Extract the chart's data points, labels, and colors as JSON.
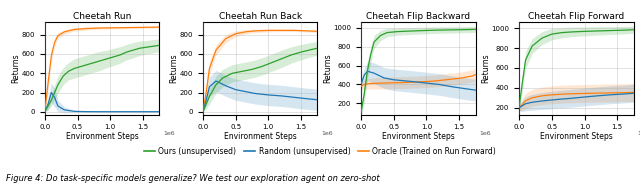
{
  "titles": [
    "Cheetah Run",
    "Cheetah Run Back",
    "Cheetah Flip Backward",
    "Cheetah Flip Forward"
  ],
  "xlabel": "Environment Steps",
  "ylabel": "Returns",
  "xticks": [
    0.0,
    0.5,
    1.0,
    1.5
  ],
  "colors": {
    "ours": "#2ca02c",
    "random": "#1f77b4",
    "oracle": "#ff7f0e"
  },
  "legend_labels": [
    "Ours (unsupervised)",
    "Random (unsupervised)",
    "Oracle (Trained on Run Forward)"
  ],
  "caption": "Figure 4: Do task-specific models generalize? We test our exploration agent on zero-shot",
  "plots": {
    "cheetah_run": {
      "ylim": [
        -30,
        930
      ],
      "yticks": [
        0,
        200,
        400,
        600,
        800
      ],
      "ours_x": [
        0,
        0.05,
        0.1,
        0.15,
        0.2,
        0.28,
        0.36,
        0.45,
        0.55,
        0.65,
        0.75,
        0.85,
        0.95,
        1.05,
        1.15,
        1.25,
        1.35,
        1.45,
        1.55,
        1.65,
        1.75
      ],
      "ours_mean": [
        0,
        60,
        120,
        200,
        280,
        370,
        420,
        450,
        470,
        490,
        510,
        530,
        550,
        570,
        590,
        620,
        640,
        660,
        670,
        680,
        690
      ],
      "ours_std": [
        0,
        40,
        60,
        80,
        90,
        90,
        90,
        100,
        100,
        100,
        100,
        100,
        90,
        90,
        85,
        80,
        80,
        75,
        70,
        70,
        65
      ],
      "random_x": [
        0,
        0.05,
        0.1,
        0.15,
        0.2,
        0.3,
        0.45,
        0.6,
        0.8,
        1.0,
        1.2,
        1.4,
        1.6,
        1.75
      ],
      "random_mean": [
        0,
        80,
        200,
        150,
        60,
        20,
        5,
        2,
        1,
        1,
        1,
        1,
        1,
        1
      ],
      "random_std": [
        0,
        60,
        100,
        100,
        60,
        30,
        10,
        5,
        3,
        3,
        3,
        3,
        3,
        3
      ],
      "oracle_x": [
        0,
        0.05,
        0.1,
        0.15,
        0.2,
        0.3,
        0.45,
        0.65,
        0.85,
        1.05,
        1.25,
        1.45,
        1.65,
        1.75
      ],
      "oracle_mean": [
        0,
        300,
        580,
        720,
        790,
        830,
        855,
        865,
        870,
        872,
        874,
        876,
        878,
        880
      ],
      "oracle_std": [
        0,
        80,
        60,
        40,
        30,
        22,
        18,
        15,
        13,
        12,
        11,
        10,
        10,
        10
      ]
    },
    "cheetah_run_back": {
      "ylim": [
        -30,
        930
      ],
      "yticks": [
        0,
        200,
        400,
        600,
        800
      ],
      "ours_x": [
        0,
        0.05,
        0.1,
        0.2,
        0.3,
        0.45,
        0.6,
        0.75,
        0.9,
        1.05,
        1.2,
        1.35,
        1.5,
        1.65,
        1.75
      ],
      "ours_mean": [
        0,
        80,
        160,
        280,
        350,
        400,
        420,
        440,
        470,
        510,
        550,
        590,
        620,
        645,
        660
      ],
      "ours_std": [
        0,
        50,
        80,
        90,
        90,
        90,
        90,
        90,
        90,
        90,
        90,
        85,
        80,
        75,
        70
      ],
      "random_x": [
        0,
        0.05,
        0.1,
        0.2,
        0.35,
        0.5,
        0.65,
        0.8,
        1.0,
        1.2,
        1.4,
        1.6,
        1.75
      ],
      "random_mean": [
        0,
        120,
        260,
        320,
        270,
        230,
        210,
        190,
        175,
        165,
        150,
        135,
        125
      ],
      "random_std": [
        0,
        60,
        100,
        110,
        110,
        110,
        110,
        110,
        110,
        110,
        110,
        110,
        110
      ],
      "oracle_x": [
        0,
        0.05,
        0.1,
        0.2,
        0.35,
        0.5,
        0.65,
        0.8,
        1.0,
        1.2,
        1.4,
        1.6,
        1.75
      ],
      "oracle_mean": [
        0,
        200,
        450,
        640,
        760,
        810,
        830,
        840,
        845,
        845,
        845,
        840,
        835
      ],
      "oracle_std": [
        0,
        80,
        70,
        55,
        40,
        30,
        22,
        18,
        15,
        13,
        12,
        12,
        12
      ]
    },
    "cheetah_flip_backward": {
      "ylim": [
        80,
        1060
      ],
      "yticks": [
        200,
        400,
        600,
        800,
        1000
      ],
      "ours_x": [
        0,
        0.05,
        0.1,
        0.15,
        0.2,
        0.3,
        0.4,
        0.55,
        0.7,
        0.9,
        1.1,
        1.3,
        1.5,
        1.7,
        1.75
      ],
      "ours_mean": [
        100,
        300,
        550,
        720,
        850,
        920,
        950,
        960,
        965,
        970,
        975,
        978,
        980,
        983,
        984
      ],
      "ours_std": [
        40,
        100,
        100,
        90,
        70,
        55,
        45,
        40,
        38,
        36,
        35,
        34,
        33,
        32,
        31
      ],
      "random_x": [
        0,
        0.05,
        0.1,
        0.2,
        0.35,
        0.5,
        0.65,
        0.8,
        1.0,
        1.2,
        1.4,
        1.6,
        1.75
      ],
      "random_mean": [
        400,
        500,
        540,
        520,
        470,
        450,
        440,
        430,
        415,
        400,
        375,
        355,
        340
      ],
      "random_std": [
        50,
        80,
        100,
        110,
        110,
        115,
        115,
        115,
        115,
        115,
        115,
        115,
        115
      ],
      "oracle_x": [
        0,
        0.05,
        0.1,
        0.2,
        0.35,
        0.5,
        0.7,
        0.9,
        1.1,
        1.3,
        1.5,
        1.7,
        1.75
      ],
      "oracle_mean": [
        380,
        400,
        408,
        412,
        415,
        418,
        422,
        428,
        435,
        450,
        465,
        490,
        505
      ],
      "oracle_std": [
        40,
        50,
        55,
        60,
        62,
        63,
        63,
        64,
        64,
        64,
        64,
        64,
        64
      ]
    },
    "cheetah_flip_forward": {
      "ylim": [
        130,
        1060
      ],
      "yticks": [
        200,
        400,
        600,
        800,
        1000
      ],
      "ours_x": [
        0,
        0.05,
        0.1,
        0.2,
        0.35,
        0.5,
        0.65,
        0.8,
        1.0,
        1.2,
        1.4,
        1.6,
        1.75
      ],
      "ours_mean": [
        200,
        450,
        680,
        820,
        900,
        940,
        955,
        962,
        968,
        972,
        976,
        980,
        984
      ],
      "ours_std": [
        50,
        80,
        85,
        75,
        65,
        58,
        52,
        48,
        45,
        42,
        40,
        38,
        35
      ],
      "random_x": [
        0,
        0.05,
        0.1,
        0.2,
        0.35,
        0.5,
        0.65,
        0.8,
        1.0,
        1.2,
        1.4,
        1.6,
        1.75
      ],
      "random_mean": [
        200,
        220,
        240,
        255,
        268,
        278,
        287,
        295,
        308,
        320,
        330,
        338,
        345
      ],
      "random_std": [
        30,
        55,
        70,
        80,
        85,
        88,
        90,
        90,
        90,
        90,
        90,
        90,
        90
      ],
      "oracle_x": [
        0,
        0.05,
        0.1,
        0.2,
        0.35,
        0.5,
        0.7,
        0.9,
        1.1,
        1.3,
        1.5,
        1.7,
        1.75
      ],
      "oracle_mean": [
        200,
        230,
        270,
        300,
        320,
        330,
        338,
        342,
        345,
        348,
        350,
        353,
        355
      ],
      "oracle_std": [
        35,
        60,
        75,
        85,
        88,
        90,
        90,
        90,
        90,
        90,
        90,
        90,
        90
      ]
    }
  }
}
